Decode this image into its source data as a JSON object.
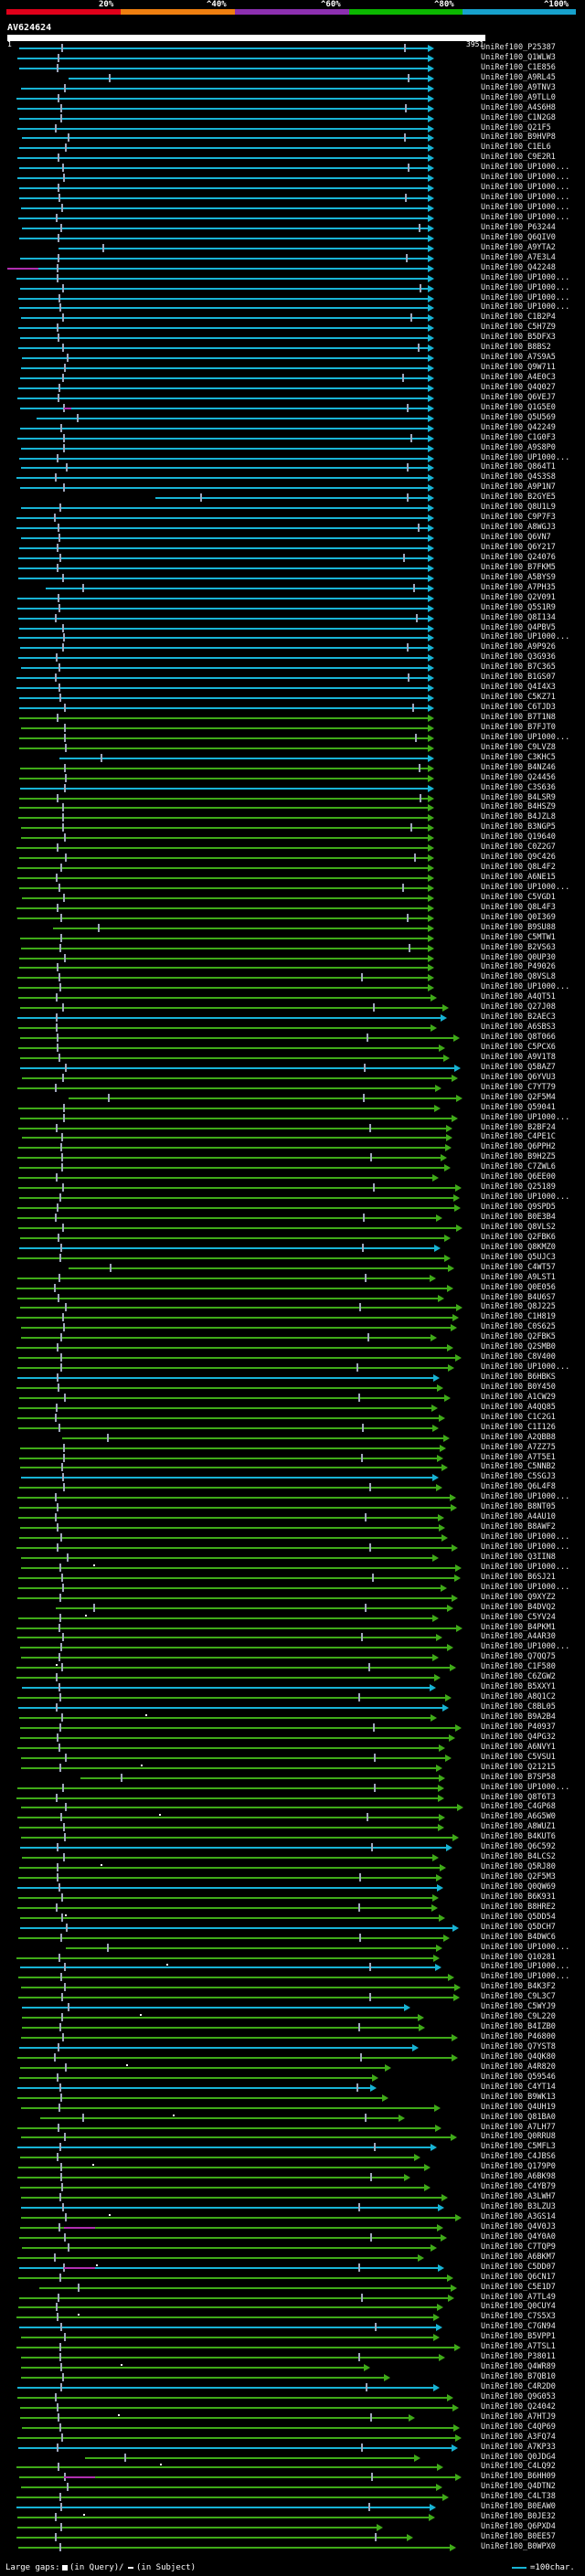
{
  "legend": {
    "ticks": [
      "20%",
      "^40%",
      "^60%",
      "^80%",
      "^100%"
    ],
    "colors": [
      "#e0001a",
      "#ef7f10",
      "#8c2fb0",
      "#0bb700",
      "#17a1cc"
    ]
  },
  "query": {
    "name": "AV624624",
    "start": "1",
    "end": "3951"
  },
  "colors": {
    "blue": "#17b3d4",
    "green": "#3faa18",
    "magenta": "#b02fb0",
    "white_tick": "#9fa7bd"
  },
  "hits": [
    "UniRef100_P25387",
    "UniRef100_Q1WLW3",
    "UniRef100_C1E856",
    "UniRef100_A9RL45",
    "UniRef100_A9TNV3",
    "UniRef100_A9TLL0",
    "UniRef100_A4S6H8",
    "UniRef100_C1N2G8",
    "UniRef100_Q21F5",
    "UniRef100_B9HVP8",
    "UniRef100_C1EL6",
    "UniRef100_C9E2R1",
    "UniRef100_UP1000...",
    "UniRef100_UP1000...",
    "UniRef100_UP1000...",
    "UniRef100_UP1000...",
    "UniRef100_UP1000...",
    "UniRef100_UP1000...",
    "UniRef100_P63244",
    "UniRef100_Q6QIV0",
    "UniRef100_A9YTA2",
    "UniRef100_A7E3L4",
    "UniRef100_Q42248",
    "UniRef100_UP1000...",
    "UniRef100_UP1000...",
    "UniRef100_UP1000...",
    "UniRef100_UP1000...",
    "UniRef100_C1B2P4",
    "UniRef100_C5H7Z9",
    "UniRef100_B5DFX3",
    "UniRef100_B8BS2",
    "UniRef100_A7S9A5",
    "UniRef100_Q9W711",
    "UniRef100_A4E0C3",
    "UniRef100_Q4Q027",
    "UniRef100_Q6VEJ7",
    "UniRef100_Q1G5E0",
    "UniRef100_Q5U569",
    "UniRef100_Q42249",
    "UniRef100_C1G0F3",
    "UniRef100_A9S8P0",
    "UniRef100_UP1000...",
    "UniRef100_Q864T1",
    "UniRef100_Q4S3S8",
    "UniRef100_A9P1N7",
    "UniRef100_B2GYE5",
    "UniRef100_Q8U1L9",
    "UniRef100_C9P7F3",
    "UniRef100_A8WGJ3",
    "UniRef100_Q6VN7",
    "UniRef100_Q6Y217",
    "UniRef100_Q24076",
    "UniRef100_B7FKM5",
    "UniRef100_A5BYS9",
    "UniRef100_A7PH35",
    "UniRef100_Q2V091",
    "UniRef100_Q5S1R9",
    "UniRef100_Q8I134",
    "UniRef100_Q4PBV5",
    "UniRef100_UP1000...",
    "UniRef100_A9P926",
    "UniRef100_Q3G936",
    "UniRef100_B7C365",
    "UniRef100_B1GS07",
    "UniRef100_Q4I4X3",
    "UniRef100_C5KZ71",
    "UniRef100_C6TJD3",
    "UniRef100_B7T1N8",
    "UniRef100_B7FJT0",
    "UniRef100_UP1000...",
    "UniRef100_C9LVZ8",
    "UniRef100_C3KHC5",
    "UniRef100_B4NZ46",
    "UniRef100_Q24456",
    "UniRef100_C3S636",
    "UniRef100_B4LSR9",
    "UniRef100_B4HSZ9",
    "UniRef100_B4JZL8",
    "UniRef100_B3NGP5",
    "UniRef100_Q19640",
    "UniRef100_C0Z2G7",
    "UniRef100_Q9C426",
    "UniRef100_Q8L4F2",
    "UniRef100_A6NE15",
    "UniRef100_UP1000...",
    "UniRef100_C5VGD1",
    "UniRef100_Q8L4F3",
    "UniRef100_Q0I369",
    "UniRef100_B9SU88",
    "UniRef100_C5MTW1",
    "UniRef100_B2VS63",
    "UniRef100_Q0UP30",
    "UniRef100_P49026",
    "UniRef100_Q8VSL8",
    "UniRef100_UP1000...",
    "UniRef100_A4QT51",
    "UniRef100_Q27J08",
    "UniRef100_B2AEC3",
    "UniRef100_A6SBS3",
    "UniRef100_Q8T066",
    "UniRef100_C5PCX6",
    "UniRef100_A9V1T8",
    "UniRef100_Q5BAZ7",
    "UniRef100_Q6YVU3",
    "UniRef100_C7YT79",
    "UniRef100_Q2F5M4",
    "UniRef100_Q59041",
    "UniRef100_UP1000...",
    "UniRef100_B2BF24",
    "UniRef100_C4PE1C",
    "UniRef100_Q6PPH2",
    "UniRef100_B9H2Z5",
    "UniRef100_C7ZWL6",
    "UniRef100_Q6EE00",
    "UniRef100_Q25189",
    "UniRef100_UP1000...",
    "UniRef100_Q9SPD5",
    "UniRef100_B0E3B4",
    "UniRef100_Q8VLS2",
    "UniRef100_Q2FBK6",
    "UniRef100_Q8KMZ0",
    "UniRef100_Q5UJC3",
    "UniRef100_C4WT57",
    "UniRef100_A9LST1",
    "UniRef100_Q0E056",
    "UniRef100_B4U6S7",
    "UniRef100_Q8J225",
    "UniRef100_C1H819",
    "UniRef100_C0S625",
    "UniRef100_Q2FBK5",
    "UniRef100_Q2SMB0",
    "UniRef100_C8V400",
    "UniRef100_UP1000...",
    "UniRef100_B6HBKS",
    "UniRef100_B0Y450",
    "UniRef100_A1CW29",
    "UniRef100_A4QQ85",
    "UniRef100_C1C2G1",
    "UniRef100_C1I126",
    "UniRef100_A2QBB8",
    "UniRef100_A7ZZ75",
    "UniRef100_A7T5E1",
    "UniRef100_C5NNB2",
    "UniRef100_C5SGJ3",
    "UniRef100_Q6L4F8",
    "UniRef100_UP1000...",
    "UniRef100_B8NT05",
    "UniRef100_A4AU10",
    "UniRef100_B8AWF2",
    "UniRef100_UP1000...",
    "UniRef100_UP1000...",
    "UniRef100_Q3IIN8",
    "UniRef100_UP1000...",
    "UniRef100_B6SJ21",
    "UniRef100_UP1000...",
    "UniRef100_Q9XYZ2",
    "UniRef100_B4DVQ2",
    "UniRef100_C5YV24",
    "UniRef100_B4PKM1",
    "UniRef100_A4AR30",
    "UniRef100_UP1000...",
    "UniRef100_Q7QQ75",
    "UniRef100_C1F580",
    "UniRef100_C6ZGW2",
    "UniRef100_B5XXY1",
    "UniRef100_A8Q1C2",
    "UniRef100_C8BL05",
    "UniRef100_B9A2B4",
    "UniRef100_P40937",
    "UniRef100_Q4PG32",
    "UniRef100_A6NVY1",
    "UniRef100_C5VSU1",
    "UniRef100_Q21215",
    "UniRef100_B7SP58",
    "UniRef100_UP1000...",
    "UniRef100_Q8T6T3",
    "UniRef100_C4GP68",
    "UniRef100_A6G5W0",
    "UniRef100_A8WUZ1",
    "UniRef100_B4KUT6",
    "UniRef100_Q6C592",
    "UniRef100_B4LCS2",
    "UniRef100_Q5RJ80",
    "UniRef100_Q2F5M3",
    "UniRef100_Q0QW69",
    "UniRef100_B6K931",
    "UniRef100_B8HRE2",
    "UniRef100_Q5DD54",
    "UniRef100_Q5DCH7",
    "UniRef100_B4DWC6",
    "UniRef100_UP1000...",
    "UniRef100_Q10281",
    "UniRef100_UP1000...",
    "UniRef100_UP1000...",
    "UniRef100_B4K3F2",
    "UniRef100_C9L3C7",
    "UniRef100_C5WYJ9",
    "UniRef100_C9L220",
    "UniRef100_B4IZB0",
    "UniRef100_P46800",
    "UniRef100_Q7YST8",
    "UniRef100_Q4QK80",
    "UniRef100_A4R820",
    "UniRef100_Q59546",
    "UniRef100_C4YT14",
    "UniRef100_B9WK13",
    "UniRef100_Q4UH19",
    "UniRef100_Q81BA0",
    "UniRef100_A7LH77",
    "UniRef100_Q0RRU8",
    "UniRef100_C5MFL3",
    "UniRef100_C4JBS6",
    "UniRef100_Q179P0",
    "UniRef100_A6BK98",
    "UniRef100_C4YB79",
    "UniRef100_A3LWH7",
    "UniRef100_B3LZU3",
    "UniRef100_A3GS14",
    "UniRef100_Q4V0J3",
    "UniRef100_Q4Y0A0",
    "UniRef100_C7TQP9",
    "UniRef100_A6BKM7",
    "UniRef100_C5DD07",
    "UniRef100_Q6CN17",
    "UniRef100_C5E1D7",
    "UniRef100_A7TL49",
    "UniRef100_Q0CUY4",
    "UniRef100_C7S5X3",
    "UniRef100_C7GN94",
    "UniRef100_B5VPP1",
    "UniRef100_A7TSL1",
    "UniRef100_P38011",
    "UniRef100_Q4WR89",
    "UniRef100_B7QB10",
    "UniRef100_C4R2D0",
    "UniRef100_Q9G053",
    "UniRef100_Q24042",
    "UniRef100_A7HTJ9",
    "UniRef100_C4QP69",
    "UniRef100_A3FQ74",
    "UniRef100_A7KP33",
    "UniRef100_Q0JDG4",
    "UniRef100_C4LQ92",
    "UniRef100_B6HH09",
    "UniRef100_Q4DTN2",
    "UniRef100_C4LT38",
    "UniRef100_B0EAW0",
    "UniRef100_B0JE32",
    "UniRef100_Q6PXD4",
    "UniRef100_B0EE57",
    "UniRef100_B0WPX0"
  ],
  "footer": {
    "large_gaps": "Large gaps:",
    "in_query": "(in Query)",
    "sep": "/",
    "in_subject": "(in Subject)",
    "scale": "=100char."
  }
}
